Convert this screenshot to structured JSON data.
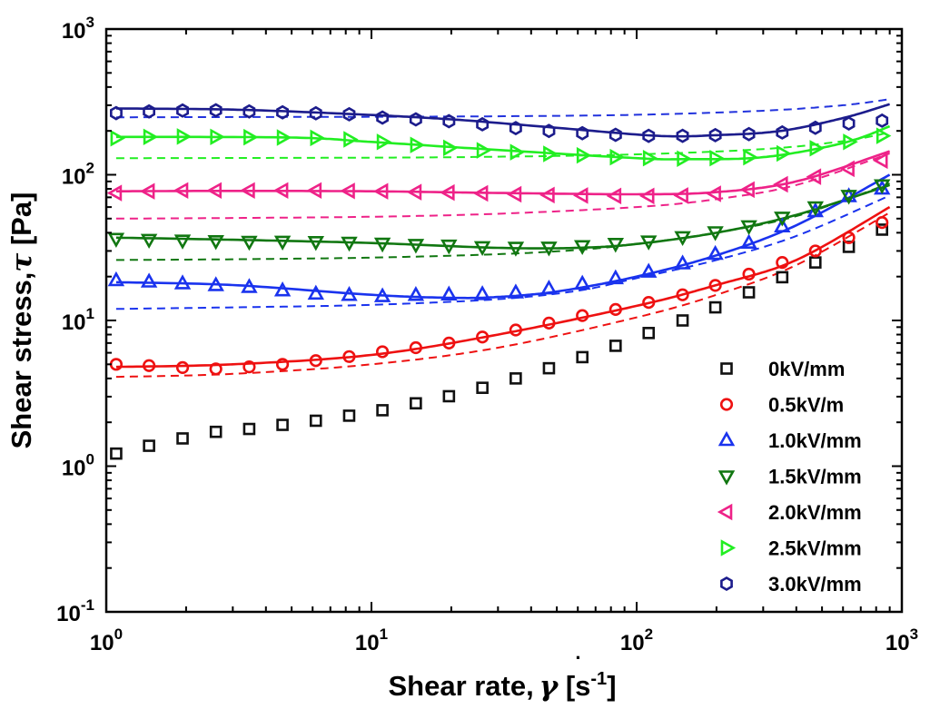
{
  "chart_data": {
    "type": "scatter",
    "x_scale": "log",
    "y_scale": "log",
    "xlim": [
      1,
      1000
    ],
    "ylim": [
      0.1,
      1000
    ],
    "xlabel": {
      "main": "Shear rate,",
      "symbol": "γ",
      "unit_open": " [s",
      "unit_exp": "-1",
      "unit_close": "]"
    },
    "ylabel": {
      "main": "Shear stress,",
      "symbol": "τ",
      "unit": " [Pa]"
    },
    "x_ticks": [
      {
        "value": 1,
        "base": "10",
        "exp": "0"
      },
      {
        "value": 10,
        "base": "10",
        "exp": "1"
      },
      {
        "value": 100,
        "base": "10",
        "exp": "2"
      },
      {
        "value": 1000,
        "base": "10",
        "exp": "3"
      }
    ],
    "y_ticks": [
      {
        "value": 0.1,
        "base": "10",
        "exp": "-1"
      },
      {
        "value": 1,
        "base": "10",
        "exp": "0"
      },
      {
        "value": 10,
        "base": "10",
        "exp": "1"
      },
      {
        "value": 100,
        "base": "10",
        "exp": "2"
      },
      {
        "value": 1000,
        "base": "10",
        "exp": "3"
      }
    ],
    "legend_position": "bottom-right",
    "x": [
      1.09,
      1.45,
      1.94,
      2.59,
      3.46,
      4.62,
      6.17,
      8.24,
      11.0,
      14.7,
      19.6,
      26.2,
      35.0,
      46.7,
      62.4,
      83.3,
      111,
      149,
      198,
      265,
      354,
      472,
      631,
      842
    ],
    "series": [
      {
        "name": "0kV/mm",
        "marker": "square",
        "color": "#111111",
        "values": [
          1.22,
          1.38,
          1.55,
          1.72,
          1.8,
          1.92,
          2.05,
          2.22,
          2.42,
          2.7,
          3.02,
          3.45,
          4.0,
          4.7,
          5.6,
          6.7,
          8.2,
          10.0,
          12.3,
          15.6,
          19.8,
          25.0,
          32.0,
          42.0
        ],
        "fit_solid": null,
        "fit_dashed": null
      },
      {
        "name": "0.5kV/m",
        "marker": "circle",
        "color": "#ee1111",
        "values": [
          5.0,
          4.9,
          4.75,
          4.65,
          4.8,
          5.0,
          5.3,
          5.65,
          6.1,
          6.5,
          7.0,
          7.7,
          8.6,
          9.6,
          10.8,
          11.9,
          13.3,
          15.0,
          17.4,
          20.8,
          25.0,
          30.0,
          37.0,
          47.0
        ],
        "fit_solid": {
          "x": [
            1.09,
            3,
            10,
            30,
            100,
            200,
            400,
            900
          ],
          "y": [
            4.8,
            5.0,
            5.8,
            8.0,
            12.6,
            17.5,
            26.0,
            60.0
          ]
        },
        "fit_dashed": {
          "x": [
            1.09,
            3,
            10,
            30,
            100,
            200,
            400,
            900
          ],
          "y": [
            4.1,
            4.3,
            5.0,
            6.5,
            10.5,
            15.0,
            24.0,
            55.0
          ]
        }
      },
      {
        "name": "1.0kV/mm",
        "marker": "triangle-up",
        "color": "#1a33ee",
        "values": [
          18.8,
          18.4,
          17.9,
          17.4,
          16.9,
          16.0,
          15.2,
          14.9,
          14.6,
          14.9,
          15.0,
          15.1,
          15.5,
          16.5,
          17.8,
          19.4,
          21.5,
          24.5,
          28.5,
          34.0,
          44.0,
          56.0,
          71.0,
          80.0
        ],
        "fit_solid": {
          "x": [
            1.09,
            3,
            10,
            20,
            30,
            50,
            100,
            200,
            400,
            900
          ],
          "y": [
            18.3,
            17.5,
            15.0,
            14.3,
            14.5,
            15.8,
            20.0,
            28.0,
            45.0,
            100.0
          ]
        },
        "fit_dashed": {
          "x": [
            1.09,
            3,
            10,
            30,
            60,
            100,
            200,
            400,
            900
          ],
          "y": [
            12.0,
            12.3,
            12.8,
            14.0,
            16.0,
            19.5,
            26.0,
            38.0,
            72.0
          ]
        }
      },
      {
        "name": "1.5kV/mm",
        "marker": "triangle-down",
        "color": "#117711",
        "values": [
          36.5,
          35.9,
          35.5,
          35.2,
          34.8,
          34.9,
          34.7,
          34.3,
          33.8,
          33.2,
          32.8,
          32.0,
          31.7,
          31.8,
          32.5,
          33.7,
          35.0,
          37.5,
          40.5,
          44.5,
          51.0,
          60.0,
          72.0,
          85.0
        ],
        "fit_solid": {
          "x": [
            1.09,
            3,
            10,
            30,
            60,
            100,
            200,
            400,
            900
          ],
          "y": [
            37.0,
            35.8,
            34.0,
            31.5,
            31.5,
            33.5,
            40.0,
            53.0,
            85.0
          ]
        },
        "fit_dashed": {
          "x": [
            1.09,
            3,
            10,
            30,
            60,
            100,
            200,
            400,
            900
          ],
          "y": [
            26.0,
            26.3,
            27.0,
            28.5,
            30.5,
            33.5,
            40.0,
            52.0,
            87.0
          ]
        }
      },
      {
        "name": "2.0kV/mm",
        "marker": "triangle-left",
        "color": "#ee2288",
        "values": [
          75.0,
          77.0,
          78.0,
          78.0,
          78.0,
          78.0,
          78.0,
          77.5,
          77.0,
          76.0,
          75.5,
          74.5,
          73.5,
          72.5,
          72.0,
          71.5,
          71.5,
          72.0,
          74.0,
          79.0,
          86.0,
          97.0,
          110.0,
          125.0
        ],
        "fit_solid": {
          "x": [
            1.09,
            3,
            10,
            30,
            100,
            200,
            400,
            900
          ],
          "y": [
            77.0,
            77.5,
            77.0,
            75.0,
            73.5,
            76.0,
            90.0,
            145.0
          ]
        },
        "fit_dashed": {
          "x": [
            1.09,
            3,
            10,
            30,
            100,
            200,
            400,
            900
          ],
          "y": [
            50.0,
            50.5,
            51.5,
            54.0,
            60.0,
            68.0,
            85.0,
            140.0
          ]
        }
      },
      {
        "name": "2.5kV/mm",
        "marker": "triangle-right",
        "color": "#22ee22",
        "values": [
          178.0,
          182.0,
          183.0,
          182.0,
          181.0,
          180.0,
          179.0,
          175.0,
          168.0,
          160.0,
          153.0,
          147.0,
          143.0,
          139.0,
          136.0,
          132.0,
          130.0,
          129.0,
          130.0,
          132.0,
          140.0,
          152.0,
          168.0,
          185.0
        ],
        "fit_solid": {
          "x": [
            1.09,
            5,
            10,
            30,
            100,
            150,
            300,
            600,
            900
          ],
          "y": [
            182.0,
            180.0,
            168.0,
            148.0,
            130.0,
            128.0,
            132.0,
            165.0,
            215.0
          ]
        },
        "fit_dashed": {
          "x": [
            1.09,
            10,
            30,
            100,
            300,
            600,
            900
          ],
          "y": [
            130.0,
            131.0,
            133.0,
            138.0,
            150.0,
            170.0,
            195.0
          ]
        }
      },
      {
        "name": "3.0kV/mm",
        "marker": "hexagon",
        "color": "#1c1c8c",
        "values": [
          265.0,
          272.0,
          276.0,
          277.0,
          272.0,
          268.0,
          264.0,
          260.0,
          247.0,
          240.0,
          233.0,
          222.0,
          209.0,
          200.0,
          193.0,
          188.0,
          185.0,
          185.0,
          187.0,
          190.0,
          195.0,
          210.0,
          225.0,
          235.0
        ],
        "fit_solid": {
          "x": [
            1.09,
            3,
            8,
            20,
            50,
            120,
            200,
            350,
            600,
            900
          ],
          "y": [
            285.0,
            280.0,
            262.0,
            240.0,
            210.0,
            185.0,
            187.0,
            200.0,
            245.0,
            305.0
          ]
        },
        "fit_dashed": {
          "x": [
            1.09,
            10,
            30,
            100,
            300,
            600,
            900
          ],
          "y": [
            248.0,
            250.0,
            252.0,
            258.0,
            275.0,
            300.0,
            330.0
          ]
        }
      }
    ]
  }
}
